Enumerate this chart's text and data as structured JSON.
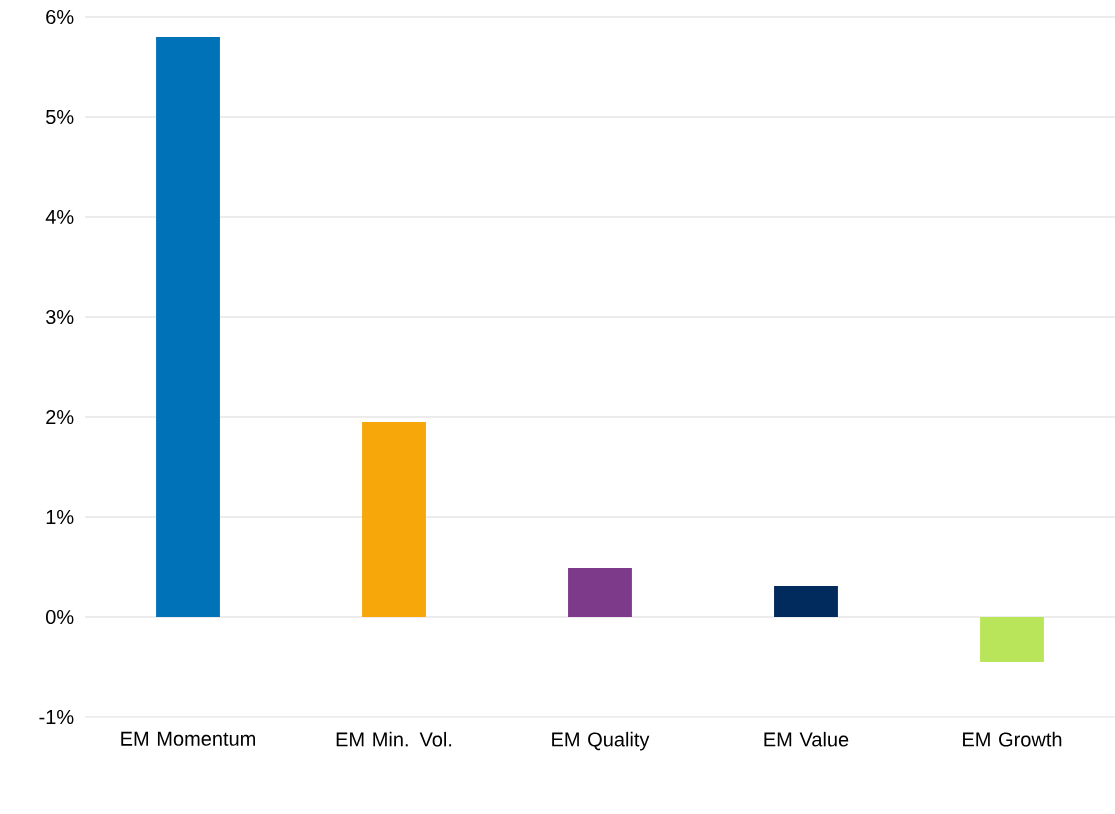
{
  "chart_data": {
    "type": "bar",
    "categories": [
      "EM Momentum",
      "EM Min. Vol.",
      "EM Quality",
      "EM Value",
      "EM Growth"
    ],
    "values": [
      5.8,
      1.95,
      0.49,
      0.31,
      -0.45
    ],
    "colors": [
      "#0072b8",
      "#f7a70a",
      "#7d3a8a",
      "#002b5c",
      "#b9e55a"
    ],
    "ylim": [
      -1,
      6
    ],
    "yticks": [
      {
        "value": -1,
        "label": "-1%"
      },
      {
        "value": 0,
        "label": "0%"
      },
      {
        "value": 1,
        "label": "1%"
      },
      {
        "value": 2,
        "label": "2%"
      },
      {
        "value": 3,
        "label": "3%"
      },
      {
        "value": 4,
        "label": "4%"
      },
      {
        "value": 5,
        "label": "5%"
      },
      {
        "value": 6,
        "label": "6%"
      }
    ],
    "grid": "y"
  }
}
